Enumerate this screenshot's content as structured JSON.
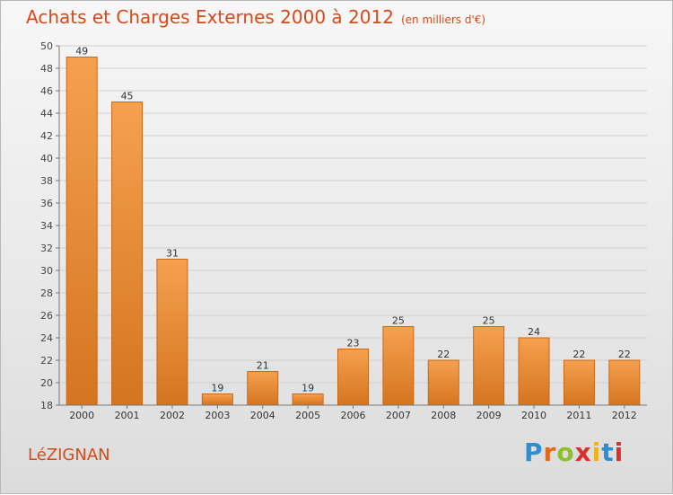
{
  "title": {
    "main": "Achats et Charges Externes 2000 à 2012",
    "unit": "(en milliers d'€)"
  },
  "commune": "LéZIGNAN",
  "brand": {
    "letters": [
      "P",
      "r",
      "o",
      "x",
      "i",
      "t",
      "i"
    ],
    "colors": [
      "#2b8fd0",
      "#e06a1b",
      "#8fbf2a",
      "#d8302a",
      "#f0b21a",
      "#2b8fd0",
      "#d8302a"
    ]
  },
  "colors": {
    "bar_top": "#f6a04f",
    "bar_bottom": "#d4751f",
    "bar_stroke": "#c8681a",
    "title": "#d54a1a"
  },
  "chart_data": {
    "type": "bar",
    "categories": [
      "2000",
      "2001",
      "2002",
      "2003",
      "2004",
      "2005",
      "2006",
      "2007",
      "2008",
      "2009",
      "2010",
      "2011",
      "2012"
    ],
    "values": [
      49,
      45,
      31,
      19,
      21,
      19,
      23,
      25,
      22,
      25,
      24,
      22,
      22
    ],
    "data_labels": [
      "49",
      "45",
      "31",
      "19",
      "21",
      "19",
      "23",
      "25",
      "22",
      "25",
      "24",
      "22",
      "22"
    ],
    "yticks": [
      "18",
      "20",
      "22",
      "24",
      "26",
      "28",
      "30",
      "32",
      "34",
      "36",
      "38",
      "40",
      "42",
      "44",
      "46",
      "48",
      "50"
    ],
    "ylim": [
      18,
      50
    ],
    "grid": true,
    "legend": "none"
  }
}
